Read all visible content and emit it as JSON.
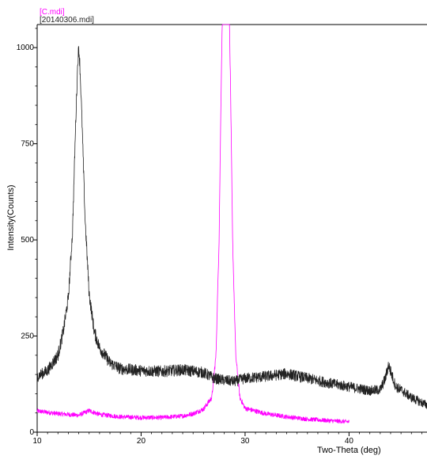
{
  "chart_data": {
    "type": "line",
    "title": "",
    "xlabel": "Two-Theta (deg)",
    "ylabel": "Intensity(Counts)",
    "xlim": [
      10,
      47.5
    ],
    "ylim": [
      0,
      1060
    ],
    "x_ticks": [
      10,
      20,
      30,
      40
    ],
    "y_ticks": [
      0,
      250,
      500,
      750,
      1000
    ],
    "x_tick_labels": [
      "10",
      "20",
      "30",
      "40"
    ],
    "y_tick_labels": [
      "0",
      "250",
      "500",
      "750",
      "1000"
    ],
    "grid": false,
    "legend_position": "top-left",
    "series": [
      {
        "name": "[C.mdi]",
        "color": "#ff00ff",
        "noise": 8,
        "points": [
          [
            10,
            55
          ],
          [
            12,
            48
          ],
          [
            14,
            44
          ],
          [
            15,
            56
          ],
          [
            16,
            46
          ],
          [
            18,
            40
          ],
          [
            20,
            38
          ],
          [
            22,
            38
          ],
          [
            24,
            42
          ],
          [
            25,
            48
          ],
          [
            26,
            60
          ],
          [
            26.8,
            90
          ],
          [
            27.2,
            200
          ],
          [
            27.5,
            500
          ],
          [
            27.7,
            900
          ],
          [
            27.8,
            1060
          ],
          [
            28.5,
            1060
          ],
          [
            28.6,
            900
          ],
          [
            28.8,
            500
          ],
          [
            29.1,
            200
          ],
          [
            29.5,
            90
          ],
          [
            30,
            62
          ],
          [
            32,
            48
          ],
          [
            34,
            40
          ],
          [
            36,
            34
          ],
          [
            38,
            30
          ],
          [
            40,
            27
          ]
        ]
      },
      {
        "name": "[20140306.mdi]",
        "color": "#222222",
        "noise": 14,
        "points": [
          [
            10,
            145
          ],
          [
            11,
            160
          ],
          [
            12,
            200
          ],
          [
            12.5,
            260
          ],
          [
            13,
            350
          ],
          [
            13.4,
            520
          ],
          [
            13.7,
            800
          ],
          [
            13.9,
            960
          ],
          [
            14.0,
            1000
          ],
          [
            14.1,
            960
          ],
          [
            14.3,
            820
          ],
          [
            14.6,
            560
          ],
          [
            15,
            360
          ],
          [
            15.5,
            260
          ],
          [
            16,
            220
          ],
          [
            17,
            180
          ],
          [
            18,
            165
          ],
          [
            20,
            160
          ],
          [
            22,
            158
          ],
          [
            24,
            162
          ],
          [
            26,
            155
          ],
          [
            27,
            140
          ],
          [
            28,
            135
          ],
          [
            29,
            132
          ],
          [
            30,
            140
          ],
          [
            32,
            145
          ],
          [
            34,
            152
          ],
          [
            36,
            140
          ],
          [
            38,
            128
          ],
          [
            40,
            118
          ],
          [
            42,
            108
          ],
          [
            43,
            110
          ],
          [
            43.5,
            140
          ],
          [
            43.8,
            175
          ],
          [
            44.1,
            150
          ],
          [
            44.5,
            118
          ],
          [
            45,
            110
          ],
          [
            46,
            90
          ],
          [
            47.5,
            70
          ]
        ]
      }
    ]
  }
}
